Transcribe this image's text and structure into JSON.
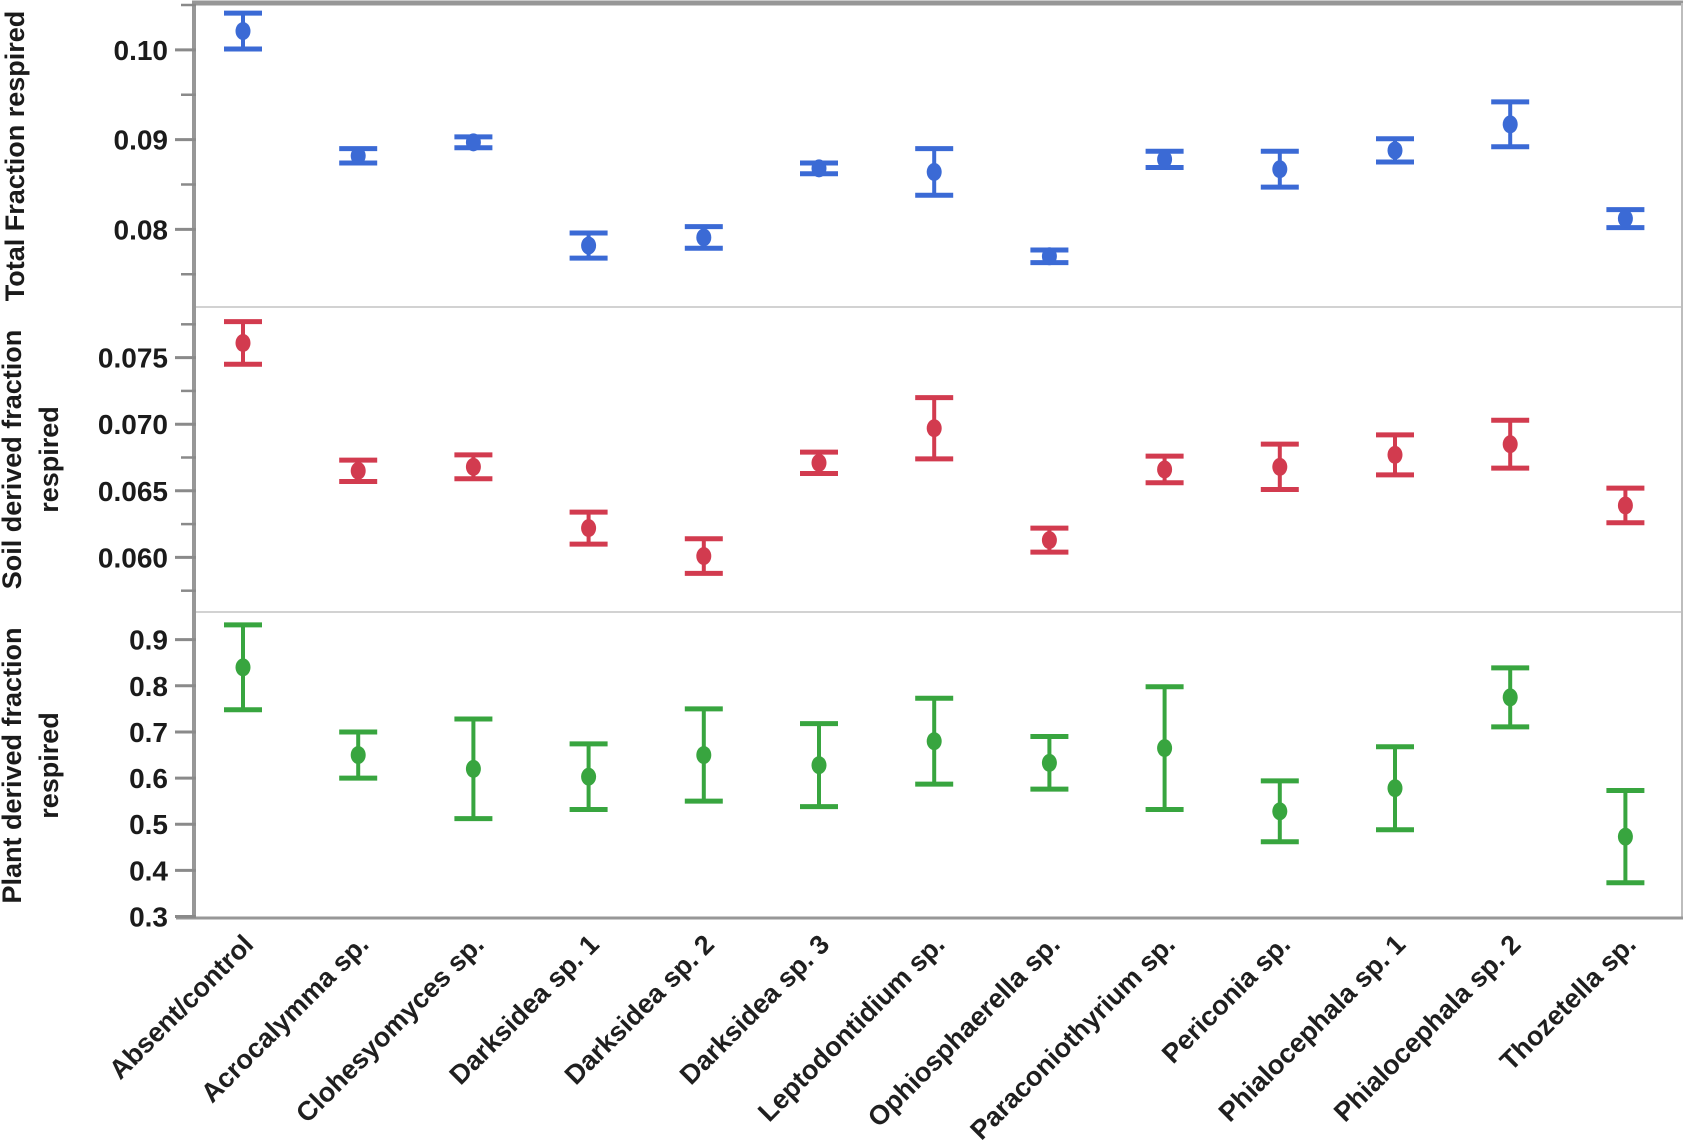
{
  "figure": {
    "background": "#ffffff",
    "axis_color": "#979797",
    "right_border_color": "#bdbdbd",
    "separator_color": "#d2d2d2",
    "tick_color": "#8a8a8a",
    "text_color": "#1b1b1b"
  },
  "categories": [
    "Absent/control",
    "Acrocalymma sp.",
    "Clohesyomyces sp.",
    "Darksidea sp. 1",
    "Darksidea sp. 2",
    "Darksidea sp. 3",
    "Leptodontidium sp.",
    "Ophiosphaerella sp.",
    "Paraconiothyrium sp.",
    "Periconia sp.",
    "Phialocephala sp. 1",
    "Phialocephala sp. 2",
    "Thozetella sp."
  ],
  "chart_data": [
    {
      "type": "scatter",
      "ylabel": "Total Fraction respired",
      "ylabel_lines": [
        "Total Fraction respired"
      ],
      "color": "#3b6ad5",
      "ylim": [
        0.07135,
        0.105
      ],
      "yticks": [
        0.08,
        0.09,
        0.1
      ],
      "ytick_labels": [
        "0.08",
        "0.09",
        "0.10"
      ],
      "minor_yticks": [
        0.075,
        0.085,
        0.095,
        0.105
      ],
      "grid": false,
      "legend": false,
      "values": [
        0.1021,
        0.0882,
        0.0897,
        0.0782,
        0.0791,
        0.0868,
        0.0864,
        0.077,
        0.0878,
        0.0867,
        0.0888,
        0.0917,
        0.0812
      ],
      "errors": [
        0.002,
        0.0008,
        0.0006,
        0.0014,
        0.0012,
        0.0006,
        0.0026,
        0.0007,
        0.0009,
        0.002,
        0.0013,
        0.0025,
        0.001
      ]
    },
    {
      "type": "scatter",
      "ylabel": "Soil derived fraction respired",
      "ylabel_lines": [
        "Soil derived fraction",
        "respired"
      ],
      "color": "#d23b4f",
      "ylim": [
        0.0559,
        0.0788
      ],
      "yticks": [
        0.06,
        0.065,
        0.07,
        0.075
      ],
      "ytick_labels": [
        "0.060",
        "0.065",
        "0.070",
        "0.075"
      ],
      "minor_yticks": [
        0.0575,
        0.0625,
        0.0675,
        0.0725,
        0.0775
      ],
      "grid": false,
      "legend": false,
      "values": [
        0.0761,
        0.0665,
        0.0668,
        0.0622,
        0.0601,
        0.0671,
        0.0697,
        0.0613,
        0.0666,
        0.0668,
        0.0677,
        0.0685,
        0.0639
      ],
      "errors": [
        0.0016,
        0.0008,
        0.0009,
        0.0012,
        0.0013,
        0.0008,
        0.0023,
        0.0009,
        0.001,
        0.0017,
        0.0015,
        0.0018,
        0.0013
      ]
    },
    {
      "type": "scatter",
      "ylabel": "Plant derived fraction respired",
      "ylabel_lines": [
        "Plant derived fraction",
        "respired"
      ],
      "color": "#38a53f",
      "ylim": [
        0.2945,
        0.96
      ],
      "yticks": [
        0.3,
        0.4,
        0.5,
        0.6,
        0.7,
        0.8,
        0.9
      ],
      "ytick_labels": [
        "0.3",
        "0.4",
        "0.5",
        "0.6",
        "0.7",
        "0.8",
        "0.9"
      ],
      "minor_yticks": [],
      "grid": false,
      "legend": false,
      "values": [
        0.84,
        0.65,
        0.62,
        0.603,
        0.65,
        0.628,
        0.68,
        0.633,
        0.665,
        0.528,
        0.578,
        0.775,
        0.473
      ],
      "errors": [
        0.092,
        0.05,
        0.108,
        0.071,
        0.1,
        0.09,
        0.093,
        0.057,
        0.133,
        0.066,
        0.09,
        0.064,
        0.1
      ]
    }
  ]
}
